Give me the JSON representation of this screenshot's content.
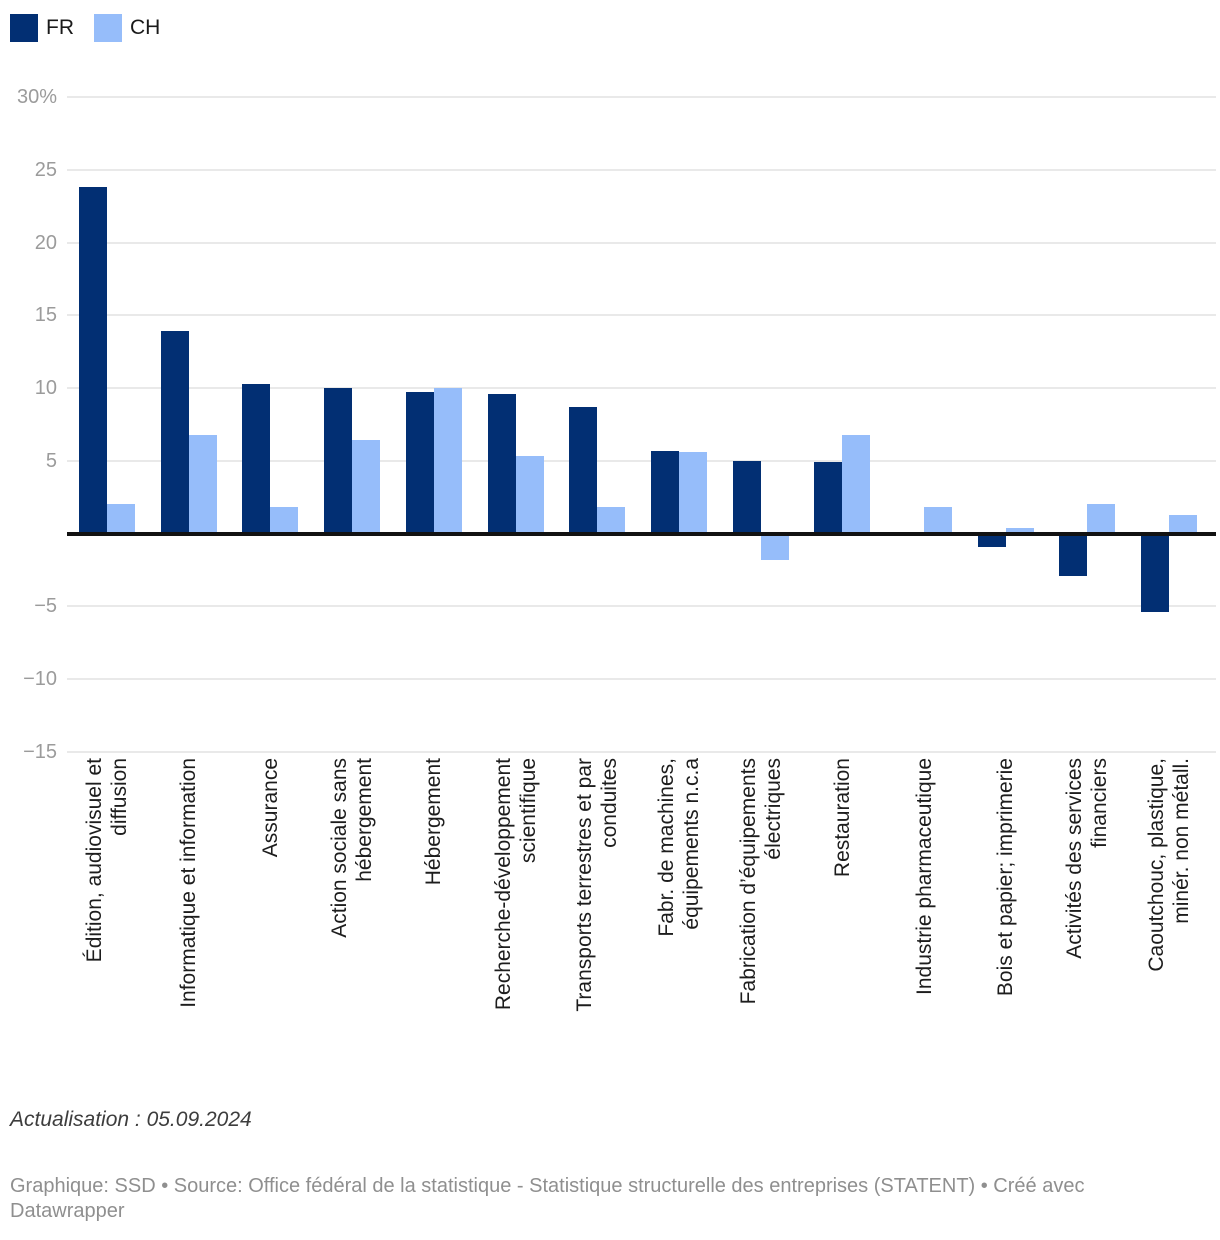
{
  "chart_data": {
    "type": "bar",
    "categories": [
      "Édition, audiovisuel et\ndiffusion",
      "Informatique et information",
      "Assurance",
      "Action sociale sans\nhébergement",
      "Hébergement",
      "Recherche-développement\nscientifique",
      "Transports terrestres et par\nconduites",
      "Fabr. de machines,\néquipements n.c.a",
      "Fabrication d’équipements\nélectriques",
      "Restauration",
      "Industrie pharmaceutique",
      "Bois et papier; imprimerie",
      "Activités des services\nfinanciers",
      "Caoutchouc, plastique,\nminér. non métall."
    ],
    "series": [
      {
        "name": "FR",
        "color": "#022f73",
        "values": [
          23.8,
          13.9,
          10.3,
          10.0,
          9.7,
          9.6,
          8.7,
          5.7,
          5.0,
          4.9,
          -0.2,
          -0.9,
          -2.9,
          -5.4
        ]
      },
      {
        "name": "CH",
        "color": "#96bdfa",
        "values": [
          2.0,
          6.8,
          1.8,
          6.4,
          10.0,
          5.3,
          1.8,
          5.6,
          -1.8,
          6.8,
          1.8,
          0.4,
          2.0,
          1.3
        ]
      }
    ],
    "title": "",
    "xlabel": "",
    "ylabel": "",
    "ylim": [
      -15,
      30
    ],
    "grid": true,
    "legend_position": "top-left",
    "yticks": [
      {
        "value": 30,
        "label": "30%"
      },
      {
        "value": 25,
        "label": "25"
      },
      {
        "value": 20,
        "label": "20"
      },
      {
        "value": 15,
        "label": "15"
      },
      {
        "value": 10,
        "label": "10"
      },
      {
        "value": 5,
        "label": "5"
      },
      {
        "value": 0,
        "label": ""
      },
      {
        "value": -5,
        "label": "−5"
      },
      {
        "value": -10,
        "label": "−10"
      },
      {
        "value": -15,
        "label": "−15"
      }
    ]
  },
  "footer": {
    "updated": "Actualisation : 05.09.2024",
    "credit": "Graphique: SSD • Source: Office fédéral de la statistique - Statistique structurelle des entreprises (STATENT) • Créé avec\nDatawrapper"
  }
}
